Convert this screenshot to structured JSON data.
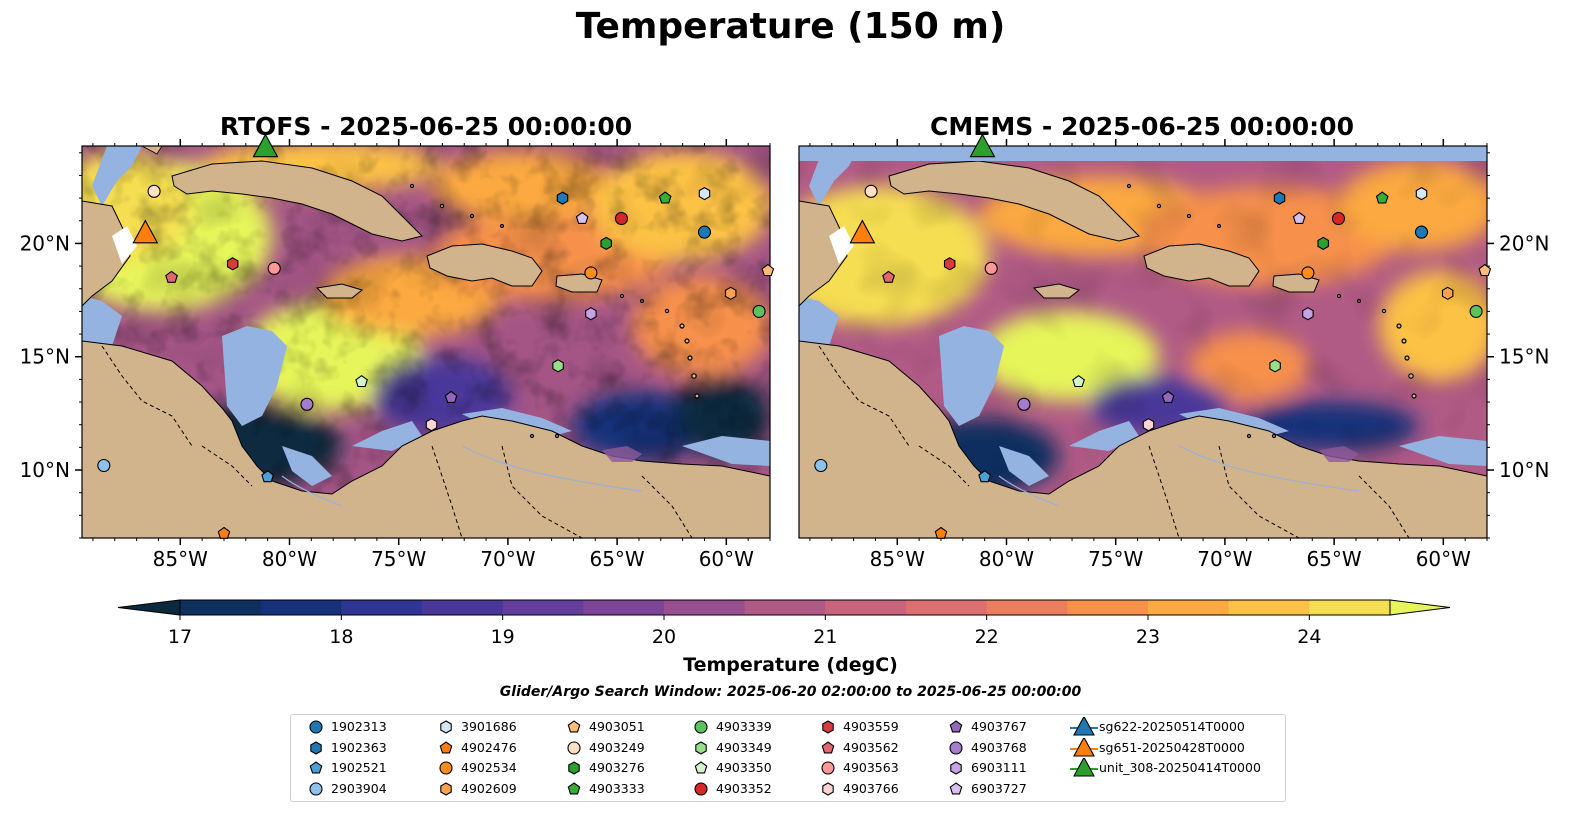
{
  "suptitle": "Temperature (150 m)",
  "panels": [
    {
      "title": "RTOFS - 2025-06-25 00:00:00"
    },
    {
      "title": "CMEMS - 2025-06-25 00:00:00"
    }
  ],
  "axes": {
    "lon_ticks": [
      "85°W",
      "80°W",
      "75°W",
      "70°W",
      "65°W",
      "60°W"
    ],
    "lat_ticks": [
      "20°N",
      "15°N",
      "10°N"
    ],
    "lon_range": [
      -89.5,
      -58.0
    ],
    "lat_range": [
      7.0,
      24.3
    ]
  },
  "colorbar": {
    "label": "Temperature (degC)",
    "ticks": [
      "17",
      "18",
      "19",
      "20",
      "21",
      "22",
      "23",
      "24"
    ],
    "range": [
      17,
      24.5
    ],
    "colors": [
      "#0b2a3f",
      "#0f2f5e",
      "#17307a",
      "#2e3592",
      "#4a3899",
      "#633e9c",
      "#7d4597",
      "#974f8f",
      "#b05a86",
      "#c8657c",
      "#dc7070",
      "#ec7d5f",
      "#f6904b",
      "#fba940",
      "#fcc245",
      "#f5de51",
      "#e6f55a"
    ]
  },
  "window_text": "Glider/Argo Search Window: 2025-06-20 02:00:00 to 2025-06-25 00:00:00",
  "legend": [
    {
      "label": "1902313",
      "marker": "circle",
      "color": "#1f77b4"
    },
    {
      "label": "1902363",
      "marker": "hexagon",
      "color": "#1f77b4"
    },
    {
      "label": "1902521",
      "marker": "pentagon",
      "color": "#4a9fd8"
    },
    {
      "label": "2903904",
      "marker": "circle",
      "color": "#8fc2ea"
    },
    {
      "label": "3901686",
      "marker": "hexagon",
      "color": "#d5e8f8"
    },
    {
      "label": "4902476",
      "marker": "pentagon",
      "color": "#ff7f0e"
    },
    {
      "label": "4902534",
      "marker": "circle",
      "color": "#ff8c1a"
    },
    {
      "label": "4902609",
      "marker": "hexagon",
      "color": "#ffa14d"
    },
    {
      "label": "4903051",
      "marker": "pentagon",
      "color": "#ffbb78"
    },
    {
      "label": "4903249",
      "marker": "circle",
      "color": "#ffe0c2"
    },
    {
      "label": "4903276",
      "marker": "hexagon",
      "color": "#2ca02c"
    },
    {
      "label": "4903333",
      "marker": "pentagon",
      "color": "#37ad37"
    },
    {
      "label": "4903339",
      "marker": "circle",
      "color": "#5cc25c"
    },
    {
      "label": "4903349",
      "marker": "hexagon",
      "color": "#98df8a"
    },
    {
      "label": "4903350",
      "marker": "pentagon",
      "color": "#d4f5cc"
    },
    {
      "label": "4903352",
      "marker": "circle",
      "color": "#d62728"
    },
    {
      "label": "4903559",
      "marker": "hexagon",
      "color": "#d93a3f"
    },
    {
      "label": "4903562",
      "marker": "pentagon",
      "color": "#e06670"
    },
    {
      "label": "4903563",
      "marker": "circle",
      "color": "#ff9896"
    },
    {
      "label": "4903766",
      "marker": "hexagon",
      "color": "#ffd5d4"
    },
    {
      "label": "4903767",
      "marker": "pentagon",
      "color": "#9467bd"
    },
    {
      "label": "4903768",
      "marker": "circle",
      "color": "#a57dcc"
    },
    {
      "label": "6903111",
      "marker": "hexagon",
      "color": "#c5a3e6"
    },
    {
      "label": "6903727",
      "marker": "pentagon",
      "color": "#d8c0f0"
    },
    {
      "label": "sg622-20250514T0000",
      "marker": "triangle",
      "color": "#1f77b4"
    },
    {
      "label": "sg651-20250428T0000",
      "marker": "triangle",
      "color": "#ff7f0e"
    },
    {
      "label": "unit_308-20250414T0000",
      "marker": "triangle",
      "color": "#2ca02c"
    }
  ],
  "floats": [
    {
      "id": "1902313",
      "lon": -61.0,
      "lat": 20.5
    },
    {
      "id": "1902363",
      "lon": -67.5,
      "lat": 22.0
    },
    {
      "id": "1902521",
      "lon": -81.0,
      "lat": 9.7
    },
    {
      "id": "2903904",
      "lon": -88.5,
      "lat": 10.2
    },
    {
      "id": "3901686",
      "lon": -61.0,
      "lat": 22.2
    },
    {
      "id": "4902476",
      "lon": -83.0,
      "lat": 7.2
    },
    {
      "id": "4902534",
      "lon": -66.2,
      "lat": 18.7
    },
    {
      "id": "4902609",
      "lon": -59.8,
      "lat": 17.8
    },
    {
      "id": "4903051",
      "lon": -58.1,
      "lat": 18.8
    },
    {
      "id": "4903249",
      "lon": -86.2,
      "lat": 22.3
    },
    {
      "id": "4903276",
      "lon": -65.5,
      "lat": 20.0
    },
    {
      "id": "4903333",
      "lon": -62.8,
      "lat": 22.0
    },
    {
      "id": "4903339",
      "lon": -58.5,
      "lat": 17.0
    },
    {
      "id": "4903349",
      "lon": -67.7,
      "lat": 14.6
    },
    {
      "id": "4903350",
      "lon": -76.7,
      "lat": 13.9
    },
    {
      "id": "4903352",
      "lon": -64.8,
      "lat": 21.1
    },
    {
      "id": "4903559",
      "lon": -82.6,
      "lat": 19.1
    },
    {
      "id": "4903562",
      "lon": -85.4,
      "lat": 18.5
    },
    {
      "id": "4903563",
      "lon": -80.7,
      "lat": 18.9
    },
    {
      "id": "4903766",
      "lon": -73.5,
      "lat": 12.0
    },
    {
      "id": "4903767",
      "lon": -72.6,
      "lat": 13.2
    },
    {
      "id": "4903768",
      "lon": -79.2,
      "lat": 12.9
    },
    {
      "id": "6903111",
      "lon": -66.2,
      "lat": 16.9
    },
    {
      "id": "6903727",
      "lon": -66.6,
      "lat": 21.1
    }
  ],
  "gliders": [
    {
      "id": "sg651-20250428T0000",
      "lon": -86.6,
      "lat": 20.4
    },
    {
      "id": "unit_308-20250414T0000",
      "lon": -81.1,
      "lat": 24.2
    }
  ]
}
